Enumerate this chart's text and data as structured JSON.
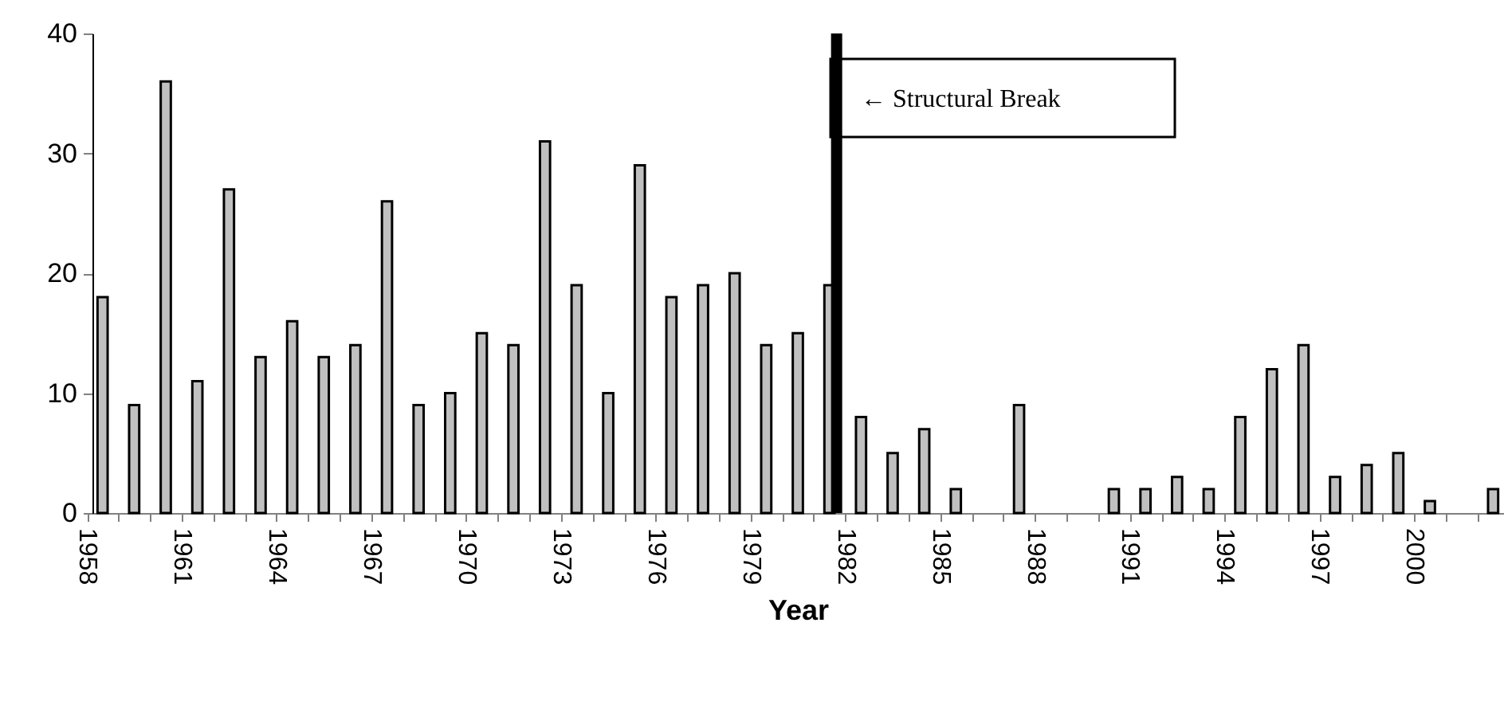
{
  "chart_data": {
    "type": "bar",
    "xlabel": "Year",
    "categories": [
      "1958",
      null,
      null,
      "1961",
      null,
      null,
      "1964",
      null,
      null,
      "1967",
      null,
      null,
      "1970",
      null,
      null,
      "1973",
      null,
      null,
      "1976",
      null,
      null,
      "1979",
      null,
      null,
      "1982",
      null,
      null,
      "1985",
      null,
      null,
      "1988",
      null,
      null,
      "1991",
      null,
      null,
      "1994",
      null,
      null,
      "1997",
      null,
      null,
      "2000",
      null,
      null
    ],
    "values": [
      18,
      9,
      36,
      11,
      27,
      13,
      16,
      13,
      14,
      26,
      9,
      10,
      15,
      14,
      31,
      19,
      10,
      29,
      18,
      19,
      20,
      14,
      15,
      19,
      8,
      5,
      7,
      2,
      0,
      9,
      0,
      0,
      2,
      2,
      3,
      2,
      8,
      12,
      14,
      3,
      4,
      5,
      1,
      0,
      2
    ],
    "color": "#c0c0c0",
    "ylim": [
      0,
      40
    ],
    "yticks": [
      0,
      10,
      20,
      30,
      40
    ],
    "annotations": [
      "← Structural Break"
    ]
  }
}
